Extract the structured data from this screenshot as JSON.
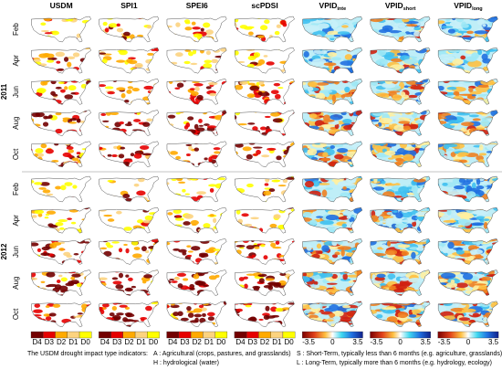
{
  "columns": [
    {
      "text": "USDM"
    },
    {
      "text": "SPI1"
    },
    {
      "text": "SPEI6"
    },
    {
      "text": "scPDSI"
    },
    {
      "text": "VPID",
      "sub": "inte"
    },
    {
      "text": "VPID",
      "sub": "short"
    },
    {
      "text": "VPID",
      "sub": "long"
    }
  ],
  "years": [
    {
      "year": "2011",
      "months": [
        "Feb",
        "Apr",
        "Jun",
        "Aug",
        "Oct"
      ]
    },
    {
      "year": "2012",
      "months": [
        "Feb",
        "Apr",
        "Jun",
        "Aug",
        "Oct"
      ]
    }
  ],
  "discrete_legend": [
    "D4",
    "D3",
    "D2",
    "D1",
    "D0"
  ],
  "continuous_legend": [
    "-3.5",
    "0",
    "3.5"
  ],
  "notes": {
    "title": "The USDM drought impact type indicators:",
    "a": "A : Agricultural (crops, pastures, and grasslands)",
    "h": "H : hydrological (water)",
    "s": "S : Short-Term, typically less than 6 months (e.g. agriculture, grasslands)",
    "l": "L : Long-Term, typically more than 6 months (e.g. hydrology, ecology)"
  }
}
